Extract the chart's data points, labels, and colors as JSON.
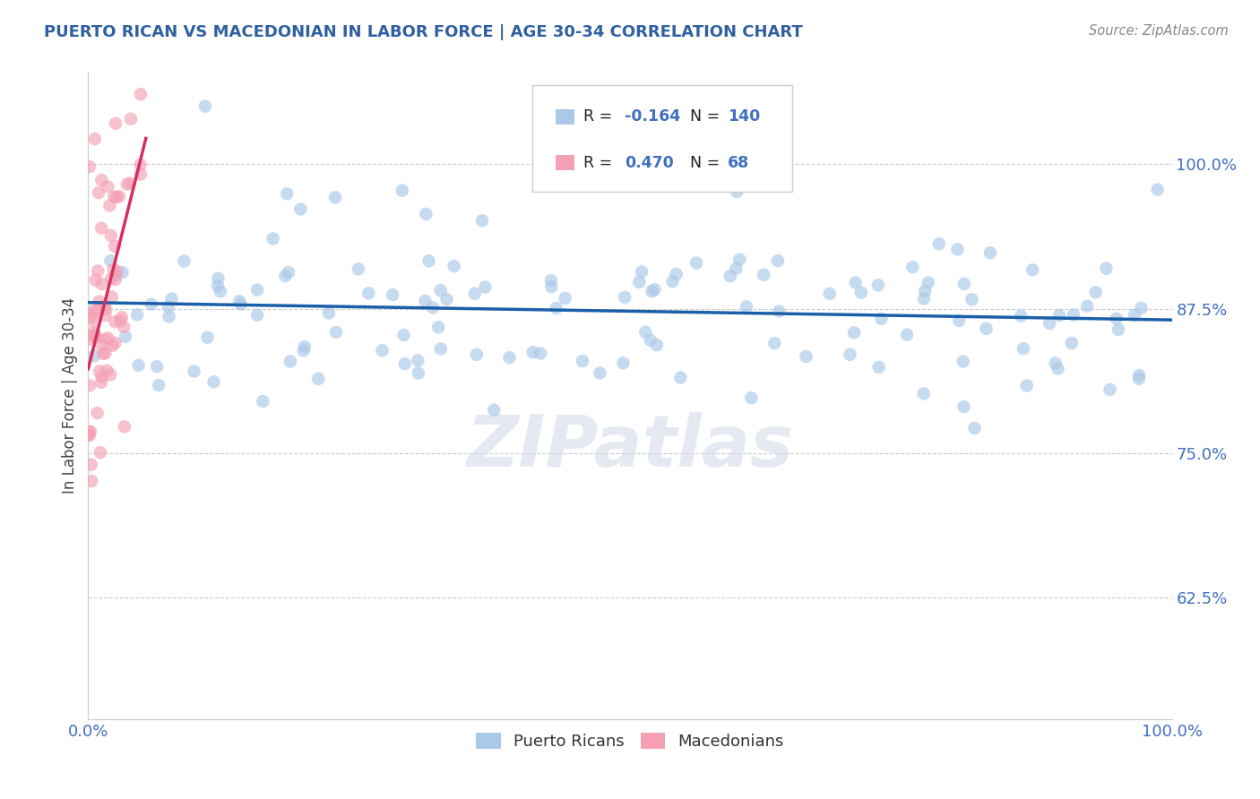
{
  "title": "PUERTO RICAN VS MACEDONIAN IN LABOR FORCE | AGE 30-34 CORRELATION CHART",
  "source": "Source: ZipAtlas.com",
  "ylabel": "In Labor Force | Age 30-34",
  "xlim": [
    0.0,
    1.0
  ],
  "ylim": [
    0.52,
    1.08
  ],
  "yticks": [
    0.625,
    0.75,
    0.875,
    1.0
  ],
  "ytick_labels": [
    "62.5%",
    "75.0%",
    "87.5%",
    "100.0%"
  ],
  "xticks": [
    0.0,
    1.0
  ],
  "xtick_labels": [
    "0.0%",
    "100.0%"
  ],
  "blue_R": -0.164,
  "blue_N": 140,
  "pink_R": 0.47,
  "pink_N": 68,
  "blue_color": "#aac8e8",
  "pink_color": "#f5a0b5",
  "blue_line_color": "#1a5fa8",
  "pink_line_color": "#d43060",
  "legend_label_blue": "Puerto Ricans",
  "legend_label_pink": "Macedonians",
  "watermark": "ZIPatlas",
  "title_color": "#3060a0",
  "background_color": "#ffffff",
  "grid_color": "#cccccc",
  "tick_color": "#4070c0",
  "source_color": "#888888"
}
